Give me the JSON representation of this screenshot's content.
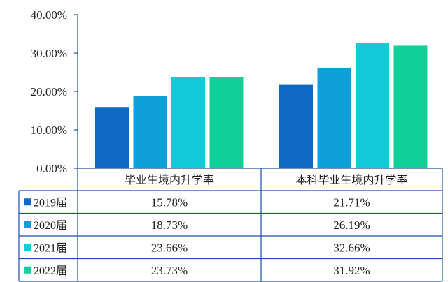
{
  "chart_data": {
    "type": "bar",
    "categories": [
      "毕业生境内升学率",
      "本科毕业生境内升学率"
    ],
    "series": [
      {
        "name": "2019届",
        "values": [
          15.78,
          21.71
        ],
        "labels": [
          "15.78%",
          "21.71%"
        ],
        "color": "#1069c4"
      },
      {
        "name": "2020届",
        "values": [
          18.73,
          26.19
        ],
        "labels": [
          "18.73%",
          "26.19%"
        ],
        "color": "#0e9fd8"
      },
      {
        "name": "2021届",
        "values": [
          23.66,
          32.66
        ],
        "labels": [
          "23.66%",
          "32.66%"
        ],
        "color": "#13cbd8"
      },
      {
        "name": "2022届",
        "values": [
          23.73,
          31.92
        ],
        "labels": [
          "23.73%",
          "31.92%"
        ],
        "color": "#13cf99"
      }
    ],
    "ylim": [
      0,
      40
    ],
    "yticks": [
      0,
      10,
      20,
      30,
      40
    ],
    "ytick_labels": [
      "0.00%",
      "10.00%",
      "20.00%",
      "30.00%",
      "40.00%"
    ],
    "data_table": true,
    "axis_color": "#1e4fa8",
    "grid": false
  }
}
